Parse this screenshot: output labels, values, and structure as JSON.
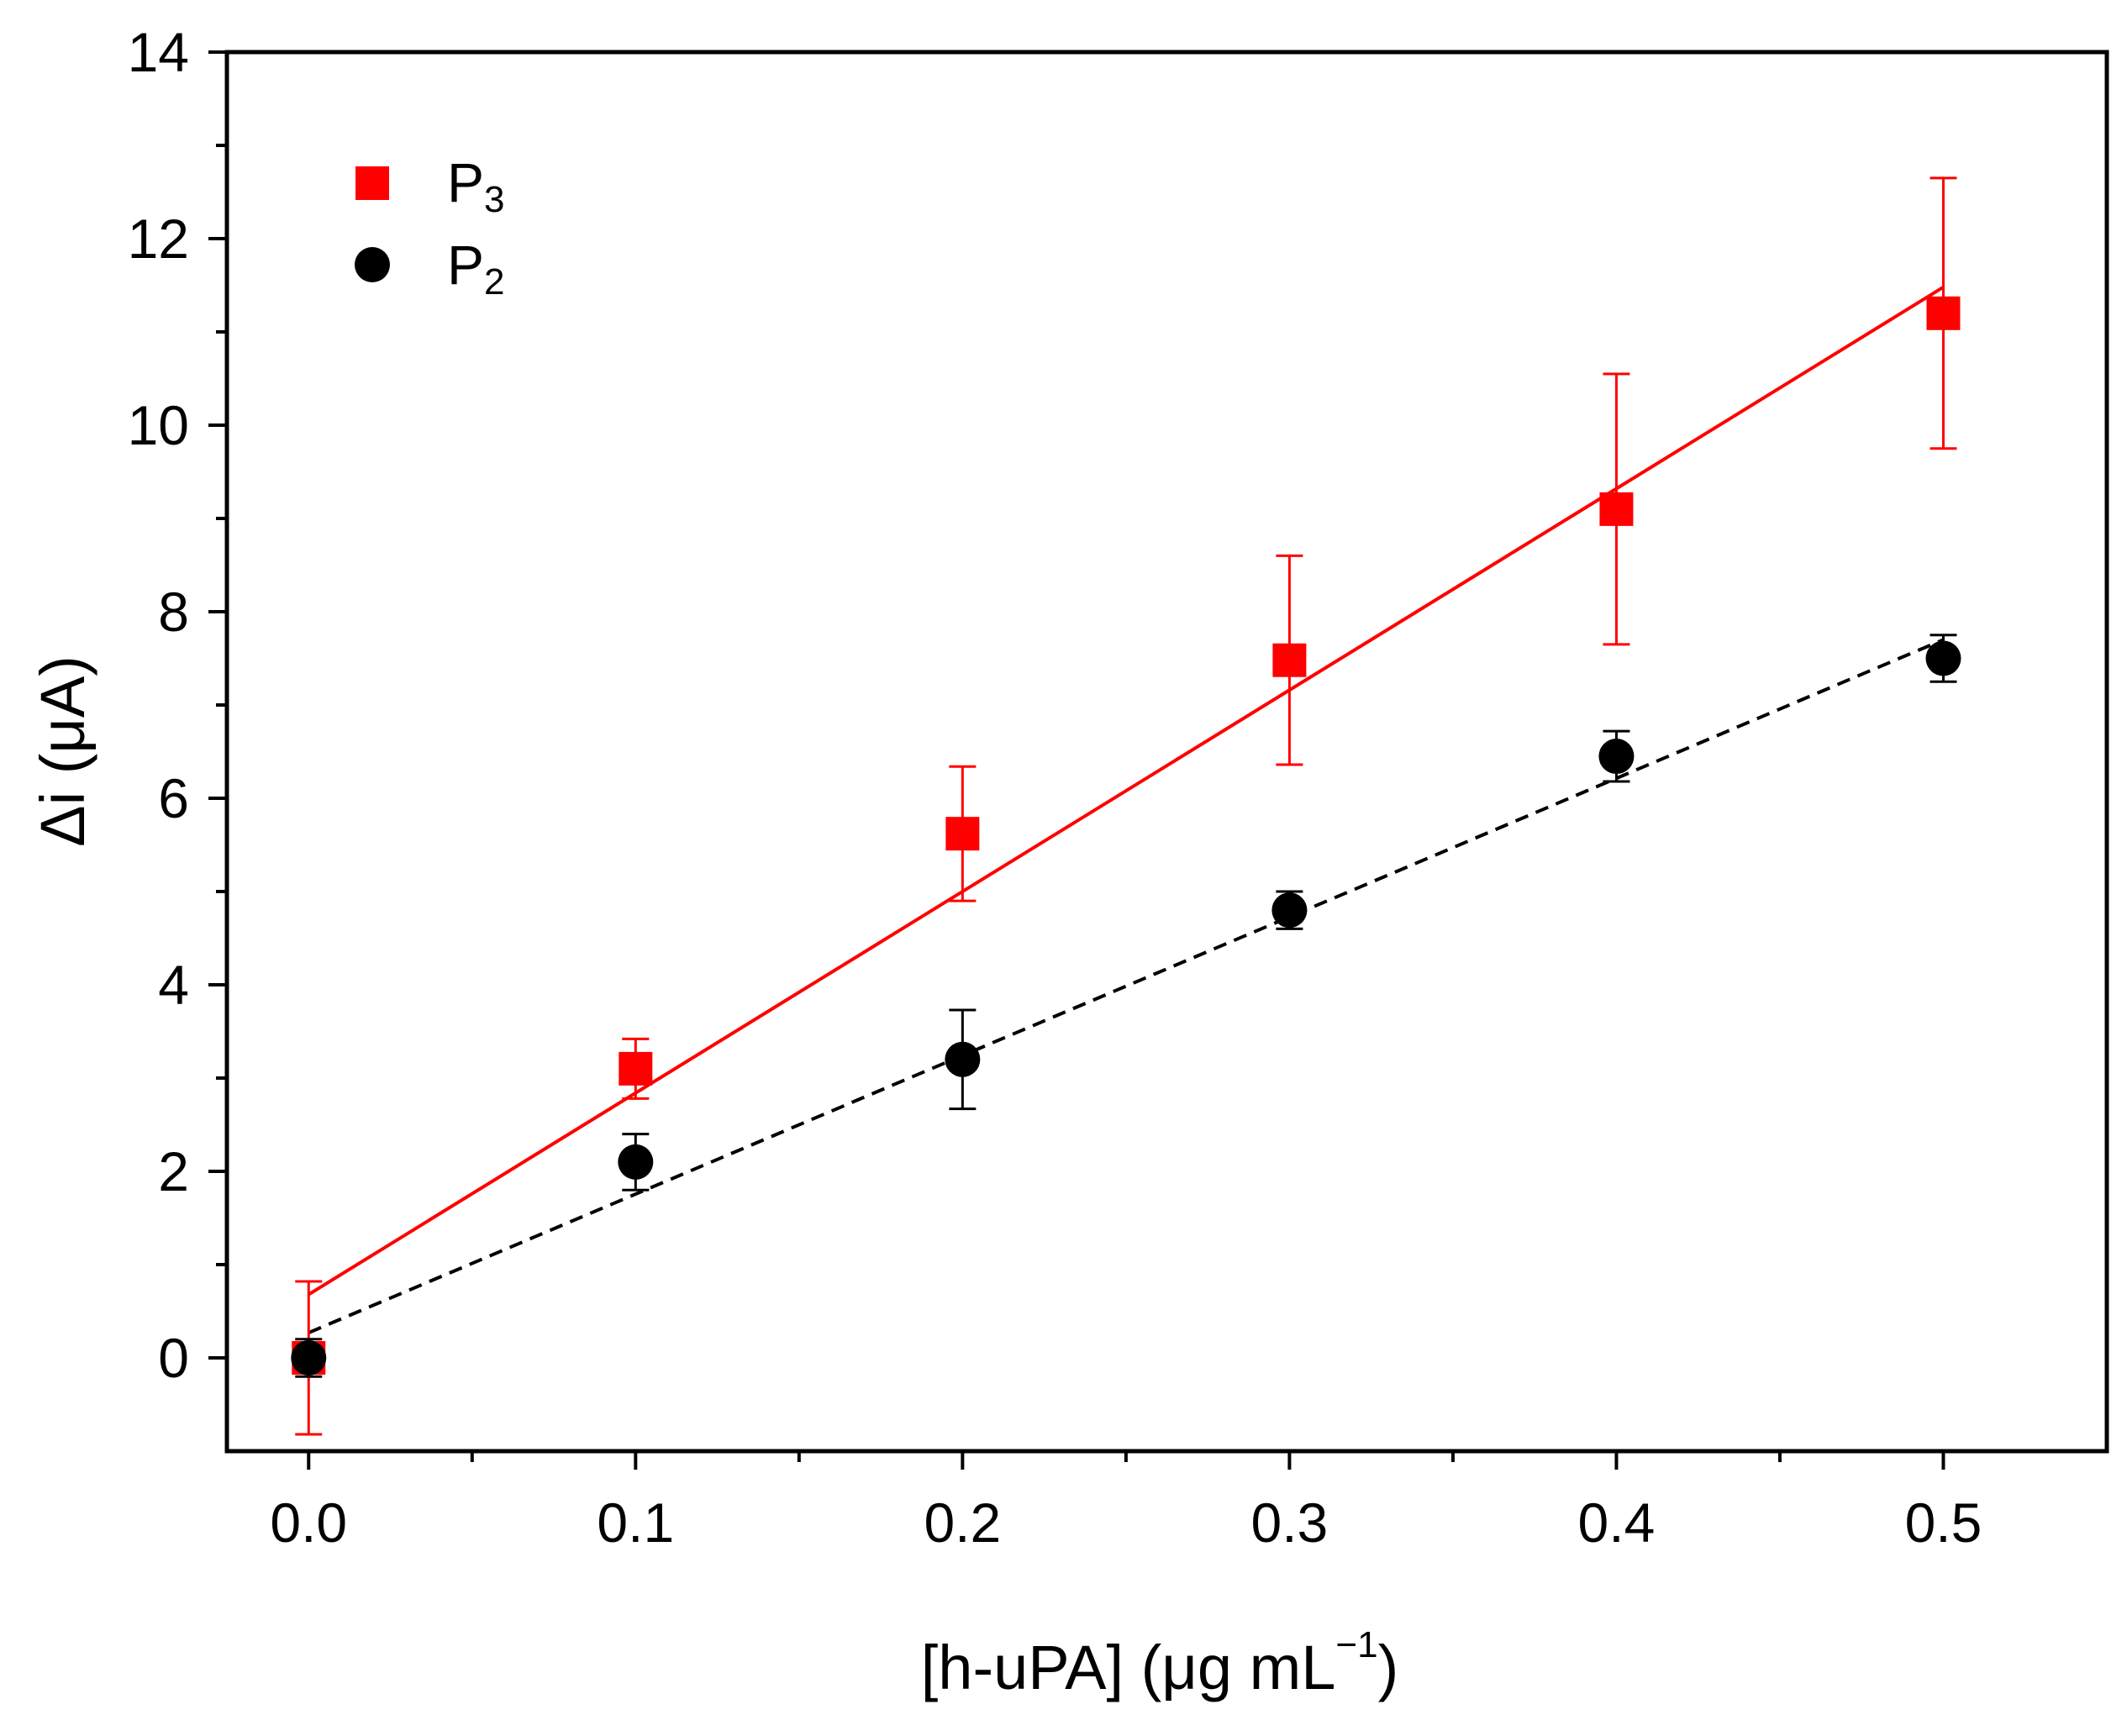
{
  "chart_data": {
    "type": "scatter",
    "title": "",
    "xlabel": {
      "prefix": "[h-uPA] (",
      "mu": "μ",
      "unit": "g mL",
      "sup": "−1",
      "suffix": ")"
    },
    "ylabel": {
      "delta": "Δ",
      "var": "i (",
      "mu": "μ",
      "unit": "A)"
    },
    "xlim": [
      -0.025,
      0.55
    ],
    "ylim": [
      -1,
      14
    ],
    "x_major_ticks": [
      0.0,
      0.1,
      0.2,
      0.3,
      0.4,
      0.5
    ],
    "x_tick_labels": [
      "0.0",
      "0.1",
      "0.2",
      "0.3",
      "0.4",
      "0.5"
    ],
    "x_minor_ticks": [
      0.05,
      0.15,
      0.25,
      0.35,
      0.45
    ],
    "y_major_ticks": [
      0,
      2,
      4,
      6,
      8,
      10,
      12,
      14
    ],
    "y_tick_labels": [
      "0",
      "2",
      "4",
      "6",
      "8",
      "10",
      "12",
      "14"
    ],
    "y_minor_ticks": [
      1,
      3,
      5,
      7,
      9,
      11,
      13
    ],
    "grid": false,
    "legend_position": "top-left",
    "series": [
      {
        "name": "P",
        "sub": "3",
        "marker": "square",
        "color": "#ff0000",
        "fit_style": "solid",
        "x": [
          0.0,
          0.1,
          0.2,
          0.3,
          0.4,
          0.5
        ],
        "y": [
          0.0,
          3.1,
          5.62,
          7.48,
          9.1,
          11.2
        ],
        "err": [
          0.82,
          0.32,
          0.72,
          1.12,
          1.45,
          1.45
        ],
        "fit": {
          "x": [
            0.0,
            0.5
          ],
          "y": [
            0.68,
            11.48
          ]
        }
      },
      {
        "name": "P",
        "sub": "2",
        "marker": "circle",
        "color": "#000000",
        "fit_style": "dashed",
        "x": [
          0.0,
          0.1,
          0.2,
          0.3,
          0.4,
          0.5
        ],
        "y": [
          0.0,
          2.1,
          3.2,
          4.8,
          6.45,
          7.5
        ],
        "err": [
          0.2,
          0.3,
          0.53,
          0.2,
          0.27,
          0.25
        ],
        "fit": {
          "x": [
            0.0,
            0.5
          ],
          "y": [
            0.27,
            7.7
          ]
        }
      }
    ]
  }
}
